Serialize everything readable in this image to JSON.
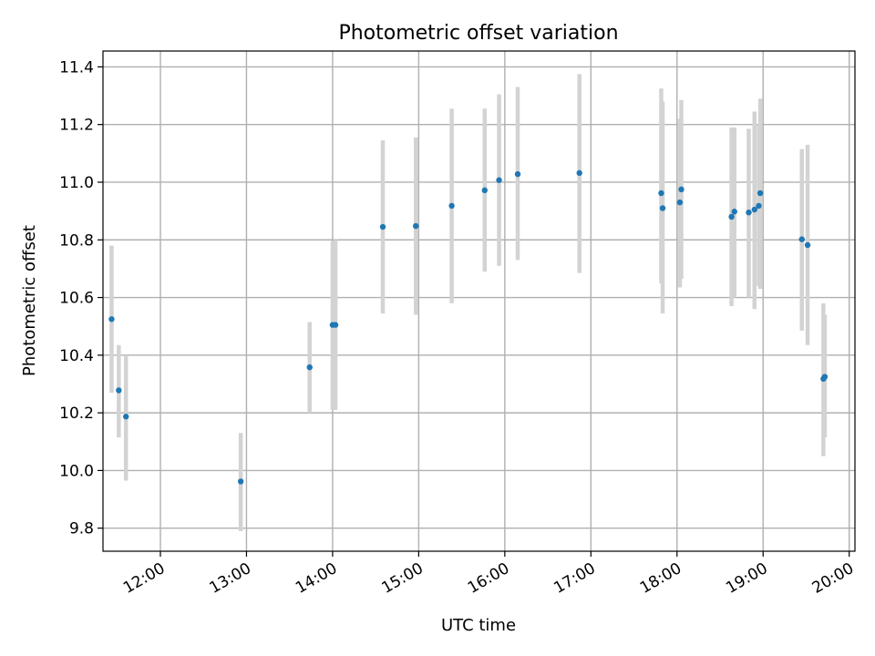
{
  "chart_data": {
    "type": "scatter",
    "title": "Photometric offset variation",
    "xlabel": "UTC time",
    "ylabel": "Photometric offset",
    "x_axis_type": "time",
    "xlim": [
      "11:20",
      "20:04"
    ],
    "ylim": [
      9.72,
      11.455
    ],
    "grid": true,
    "marker_color": "#1f77b4",
    "errorbar_color": "#d3d3d3",
    "x_ticks": [
      "12:00",
      "13:00",
      "14:00",
      "15:00",
      "16:00",
      "17:00",
      "18:00",
      "19:00",
      "20:00"
    ],
    "y_ticks": [
      9.8,
      10.0,
      10.2,
      10.4,
      10.6,
      10.8,
      11.0,
      11.2,
      11.4
    ],
    "y_tick_labels": [
      "9.8",
      "10.0",
      "10.2",
      "10.4",
      "10.6",
      "10.8",
      "11.0",
      "11.2",
      "11.4"
    ],
    "points": [
      {
        "x": "11:26",
        "y": 10.525,
        "ylow": 10.27,
        "yhigh": 10.78
      },
      {
        "x": "11:31",
        "y": 10.278,
        "ylow": 10.115,
        "yhigh": 10.435
      },
      {
        "x": "11:36",
        "y": 10.187,
        "ylow": 9.965,
        "yhigh": 10.4
      },
      {
        "x": "12:56",
        "y": 9.962,
        "ylow": 9.79,
        "yhigh": 10.13
      },
      {
        "x": "13:44",
        "y": 10.358,
        "ylow": 10.2,
        "yhigh": 10.515
      },
      {
        "x": "14:00",
        "y": 10.505,
        "ylow": 10.21,
        "yhigh": 10.795
      },
      {
        "x": "14:02",
        "y": 10.505,
        "ylow": 10.21,
        "yhigh": 10.8
      },
      {
        "x": "14:35",
        "y": 10.845,
        "ylow": 10.545,
        "yhigh": 11.145
      },
      {
        "x": "14:58",
        "y": 10.848,
        "ylow": 10.54,
        "yhigh": 11.155
      },
      {
        "x": "15:23",
        "y": 10.918,
        "ylow": 10.58,
        "yhigh": 11.255
      },
      {
        "x": "15:46",
        "y": 10.972,
        "ylow": 10.69,
        "yhigh": 11.255
      },
      {
        "x": "15:56",
        "y": 11.007,
        "ylow": 10.71,
        "yhigh": 11.305
      },
      {
        "x": "16:09",
        "y": 11.028,
        "ylow": 10.73,
        "yhigh": 11.33
      },
      {
        "x": "16:52",
        "y": 11.032,
        "ylow": 10.685,
        "yhigh": 11.375
      },
      {
        "x": "17:49",
        "y": 10.962,
        "ylow": 10.65,
        "yhigh": 11.325
      },
      {
        "x": "17:50",
        "y": 10.91,
        "ylow": 10.545,
        "yhigh": 11.28
      },
      {
        "x": "18:02",
        "y": 10.93,
        "ylow": 10.635,
        "yhigh": 11.22
      },
      {
        "x": "18:03",
        "y": 10.975,
        "ylow": 10.665,
        "yhigh": 11.285
      },
      {
        "x": "18:38",
        "y": 10.88,
        "ylow": 10.57,
        "yhigh": 11.19
      },
      {
        "x": "18:40",
        "y": 10.898,
        "ylow": 10.6,
        "yhigh": 11.19
      },
      {
        "x": "18:50",
        "y": 10.895,
        "ylow": 10.6,
        "yhigh": 11.185
      },
      {
        "x": "18:54",
        "y": 10.905,
        "ylow": 10.56,
        "yhigh": 11.245
      },
      {
        "x": "18:57",
        "y": 10.918,
        "ylow": 10.64,
        "yhigh": 11.2
      },
      {
        "x": "18:58",
        "y": 10.962,
        "ylow": 10.63,
        "yhigh": 11.29
      },
      {
        "x": "19:27",
        "y": 10.802,
        "ylow": 10.485,
        "yhigh": 11.115
      },
      {
        "x": "19:31",
        "y": 10.782,
        "ylow": 10.435,
        "yhigh": 11.13
      },
      {
        "x": "19:42",
        "y": 10.318,
        "ylow": 10.05,
        "yhigh": 10.58
      },
      {
        "x": "19:43",
        "y": 10.325,
        "ylow": 10.115,
        "yhigh": 10.54
      }
    ]
  }
}
